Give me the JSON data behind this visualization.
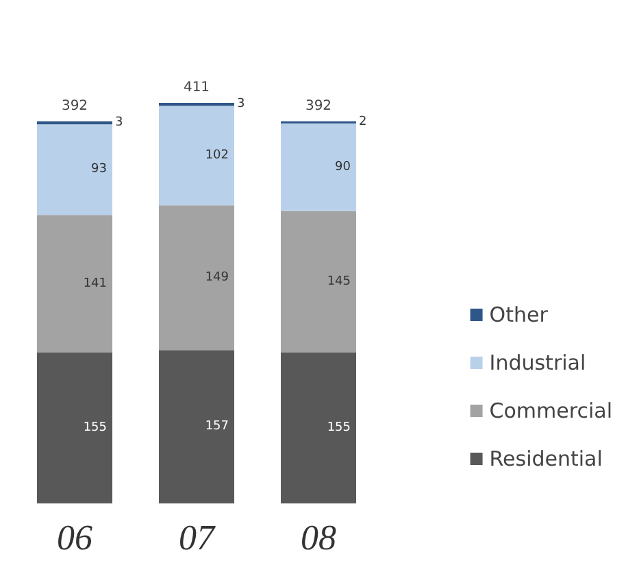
{
  "chart_data": {
    "type": "bar",
    "stacked": true,
    "categories": [
      "06",
      "07",
      "08"
    ],
    "series": [
      {
        "name": "Residential",
        "color": "#585858",
        "values": [
          155,
          157,
          155
        ]
      },
      {
        "name": "Commercial",
        "color": "#a3a3a3",
        "values": [
          141,
          149,
          145
        ]
      },
      {
        "name": "Industrial",
        "color": "#b9d0ea",
        "values": [
          93,
          102,
          90
        ]
      },
      {
        "name": "Other",
        "color": "#2e5688",
        "values": [
          3,
          3,
          2
        ]
      }
    ],
    "data_labels": true,
    "totals": [
      "392",
      "411",
      "392"
    ],
    "legend": "right"
  }
}
